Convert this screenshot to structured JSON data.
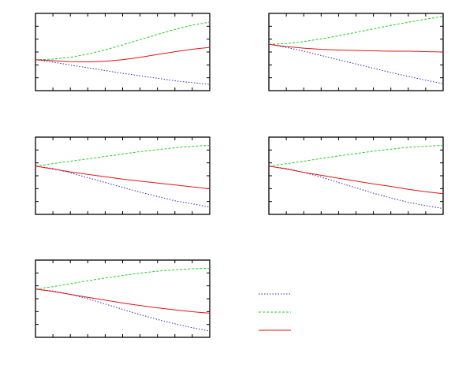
{
  "colors": {
    "frame": "#000000",
    "blue": "#2b2bbf",
    "green": "#22cc22",
    "red": "#e01515"
  },
  "legend": [
    {
      "series_index": 0,
      "dash": "dotted",
      "color": "#2b2bbf"
    },
    {
      "series_index": 1,
      "dash": "dashed",
      "color": "#22cc22"
    },
    {
      "series_index": 2,
      "dash": "solid",
      "color": "#e01515"
    }
  ],
  "chart_data": [
    {
      "type": "line",
      "grid": false,
      "xlim": [
        0,
        1
      ],
      "ylim": [
        -1.0,
        1.5
      ],
      "x": [
        0,
        0.1,
        0.2,
        0.3,
        0.4,
        0.5,
        0.6,
        0.7,
        0.8,
        0.9,
        1.0
      ],
      "series": [
        {
          "values": [
            0,
            -0.08,
            -0.17,
            -0.26,
            -0.35,
            -0.44,
            -0.52,
            -0.6,
            -0.68,
            -0.74,
            -0.8
          ],
          "dash": "dotted",
          "color": "#2b2bbf"
        },
        {
          "values": [
            0,
            0.02,
            0.08,
            0.18,
            0.32,
            0.48,
            0.65,
            0.82,
            0.98,
            1.12,
            1.22
          ],
          "dash": "dashed",
          "color": "#22cc22"
        },
        {
          "values": [
            0,
            -0.03,
            -0.06,
            -0.07,
            -0.05,
            0.0,
            0.08,
            0.17,
            0.26,
            0.34,
            0.4
          ],
          "dash": "solid",
          "color": "#e01515"
        }
      ]
    },
    {
      "type": "line",
      "grid": false,
      "xlim": [
        0,
        1
      ],
      "ylim": [
        -1.2,
        0.8
      ],
      "x": [
        0,
        0.1,
        0.2,
        0.3,
        0.4,
        0.5,
        0.6,
        0.7,
        0.8,
        0.9,
        1.0
      ],
      "series": [
        {
          "values": [
            0,
            -0.08,
            -0.18,
            -0.29,
            -0.4,
            -0.51,
            -0.62,
            -0.73,
            -0.83,
            -0.93,
            -1.02
          ],
          "dash": "dotted",
          "color": "#2b2bbf"
        },
        {
          "values": [
            0,
            0.02,
            0.07,
            0.14,
            0.22,
            0.31,
            0.4,
            0.49,
            0.57,
            0.65,
            0.72
          ],
          "dash": "dashed",
          "color": "#22cc22"
        },
        {
          "values": [
            0,
            -0.06,
            -0.1,
            -0.13,
            -0.15,
            -0.16,
            -0.17,
            -0.18,
            -0.18,
            -0.19,
            -0.2
          ],
          "dash": "solid",
          "color": "#e01515"
        }
      ]
    },
    {
      "type": "line",
      "grid": false,
      "xlim": [
        0,
        1
      ],
      "ylim": [
        -1.0,
        0.6
      ],
      "x": [
        0,
        0.1,
        0.2,
        0.3,
        0.4,
        0.5,
        0.6,
        0.7,
        0.8,
        0.9,
        1.0
      ],
      "series": [
        {
          "values": [
            0,
            -0.05,
            -0.14,
            -0.24,
            -0.34,
            -0.44,
            -0.54,
            -0.63,
            -0.72,
            -0.78,
            -0.85
          ],
          "dash": "dotted",
          "color": "#2b2bbf"
        },
        {
          "values": [
            0,
            0.05,
            0.1,
            0.15,
            0.2,
            0.25,
            0.3,
            0.34,
            0.38,
            0.41,
            0.43
          ],
          "dash": "dashed",
          "color": "#22cc22"
        },
        {
          "values": [
            0,
            -0.06,
            -0.12,
            -0.17,
            -0.22,
            -0.27,
            -0.31,
            -0.35,
            -0.39,
            -0.43,
            -0.47
          ],
          "dash": "solid",
          "color": "#e01515"
        }
      ]
    },
    {
      "type": "line",
      "grid": false,
      "xlim": [
        0,
        1
      ],
      "ylim": [
        -1.0,
        0.6
      ],
      "x": [
        0,
        0.1,
        0.2,
        0.3,
        0.4,
        0.5,
        0.6,
        0.7,
        0.8,
        0.9,
        1.0
      ],
      "series": [
        {
          "values": [
            0,
            -0.05,
            -0.13,
            -0.23,
            -0.34,
            -0.45,
            -0.56,
            -0.66,
            -0.75,
            -0.82,
            -0.88
          ],
          "dash": "dotted",
          "color": "#2b2bbf"
        },
        {
          "values": [
            0,
            0.05,
            0.1,
            0.16,
            0.21,
            0.26,
            0.31,
            0.35,
            0.39,
            0.41,
            0.43
          ],
          "dash": "dashed",
          "color": "#22cc22"
        },
        {
          "values": [
            0,
            -0.06,
            -0.13,
            -0.19,
            -0.25,
            -0.31,
            -0.37,
            -0.42,
            -0.48,
            -0.53,
            -0.57
          ],
          "dash": "solid",
          "color": "#e01515"
        }
      ]
    },
    {
      "type": "line",
      "grid": false,
      "xlim": [
        0,
        1
      ],
      "ylim": [
        -1.0,
        0.6
      ],
      "x": [
        0,
        0.1,
        0.2,
        0.3,
        0.4,
        0.5,
        0.6,
        0.7,
        0.8,
        0.9,
        1.0
      ],
      "series": [
        {
          "values": [
            0,
            -0.04,
            -0.11,
            -0.2,
            -0.31,
            -0.42,
            -0.53,
            -0.63,
            -0.72,
            -0.8,
            -0.87
          ],
          "dash": "dotted",
          "color": "#2b2bbf"
        },
        {
          "values": [
            0,
            0.05,
            0.11,
            0.17,
            0.23,
            0.28,
            0.33,
            0.37,
            0.4,
            0.42,
            0.43
          ],
          "dash": "dashed",
          "color": "#22cc22"
        },
        {
          "values": [
            0,
            -0.05,
            -0.11,
            -0.17,
            -0.23,
            -0.29,
            -0.34,
            -0.39,
            -0.43,
            -0.47,
            -0.5
          ],
          "dash": "solid",
          "color": "#e01515"
        }
      ]
    }
  ]
}
